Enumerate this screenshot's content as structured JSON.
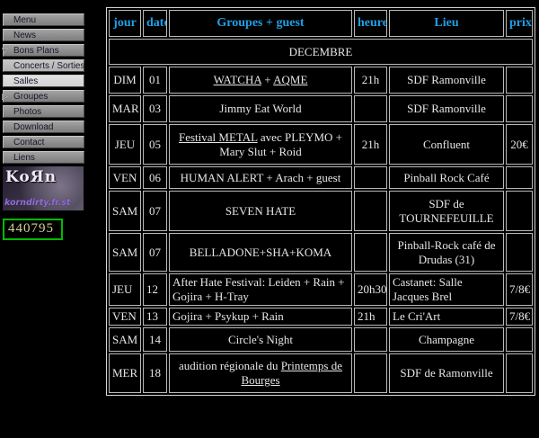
{
  "icons": {
    "triangle_down": "▽",
    "triangle_right": "▷"
  },
  "colors": {
    "page_background": "#000000",
    "table_border": "#c0c0c0",
    "header_blue": "#1fa0e6",
    "month_green": "#33cc33",
    "price_cyan": "#00b8e6",
    "counter_border_green": "#00bb00",
    "counter_text": "#d6cf9b",
    "banner_url_purple": "#8f6fd0"
  },
  "sidebar": {
    "items": [
      {
        "label": "Menu"
      },
      {
        "label": "News"
      },
      {
        "label": "Bons Plans"
      },
      {
        "label": "Concerts / Sorties"
      },
      {
        "label": "Salles"
      },
      {
        "label": "Groupes"
      },
      {
        "label": "Photos"
      },
      {
        "label": "Download"
      },
      {
        "label": "Contact"
      },
      {
        "label": "Liens"
      }
    ],
    "banner": {
      "logo_text": "KoЯn",
      "url_text": "korndirty.fr.st"
    },
    "counter_value": "440795"
  },
  "table": {
    "headers": {
      "jour": "jour",
      "date": "date",
      "groupes": "Groupes  + guest",
      "heure": "heure",
      "lieu": "Lieu",
      "prix": "prix"
    },
    "month_title": "DECEMBRE",
    "rows": [
      {
        "jour": "DIM",
        "date": "01",
        "g_link1": "WATCHA",
        "g_mid": " + ",
        "g_link2": "AQME",
        "heure": "21h",
        "lieu": "SDF Ramonville",
        "prix": ""
      },
      {
        "jour": "MAR",
        "date": "03",
        "g_text": "Jimmy Eat World",
        "heure": "",
        "lieu": "SDF Ramonville",
        "prix": ""
      },
      {
        "jour": "JEU",
        "date": "05",
        "g_link1": "Festival METAL",
        "g_text": "  avec PLEYMO + Mary Slut + Roid",
        "heure": "21h",
        "lieu": "Confluent",
        "prix": "20€"
      },
      {
        "jour": "VEN",
        "date": "06",
        "g_text": "HUMAN ALERT + Arach + guest",
        "heure": "",
        "lieu": "Pinball Rock Café",
        "prix": ""
      },
      {
        "jour": "SAM",
        "date": "07",
        "g_text": "SEVEN HATE",
        "heure": "",
        "lieu": "SDF de TOURNEFEUILLE",
        "prix": ""
      },
      {
        "jour": "SAM",
        "date": "07",
        "g_text": "BELLADONE+SHA+KOMA",
        "heure": "",
        "lieu": "Pinball-Rock café de Drudas (31)",
        "prix": ""
      },
      {
        "jour": "JEU",
        "date": "12",
        "g_text": "After Hate Festival: Leiden + Rain + Gojira + H-Tray",
        "heure": "20h30",
        "lieu": "Castanet: Salle Jacques Brel",
        "prix": "7/8€"
      },
      {
        "jour": "VEN",
        "date": "13",
        "g_text": "Gojira + Psykup + Rain",
        "heure": "21h",
        "lieu": "Le Cri'Art",
        "prix": "7/8€"
      },
      {
        "jour": "SAM",
        "date": "14",
        "g_text": "Circle's Night",
        "heure": "",
        "lieu": "Champagne",
        "prix": ""
      },
      {
        "jour": "MER",
        "date": "18",
        "g_text": "audition régionale du ",
        "g_link1": "Printemps de Bourges",
        "heure": "",
        "lieu": "SDF de Ramonville",
        "prix": ""
      }
    ]
  }
}
